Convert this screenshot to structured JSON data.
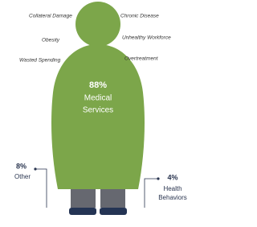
{
  "causes_left": [
    "Collateral Damage",
    "Obesity",
    "Wasted Spending"
  ],
  "causes_right": [
    "Chronic Disease",
    "Unhealthy Workforce",
    "Overtreatment"
  ],
  "main": {
    "percent": "88%",
    "label": [
      "Medical",
      "Services"
    ]
  },
  "other": {
    "percent": "8%",
    "label": "Other"
  },
  "health": {
    "percent": "4%",
    "label": [
      "Health",
      "Behaviors"
    ]
  }
}
